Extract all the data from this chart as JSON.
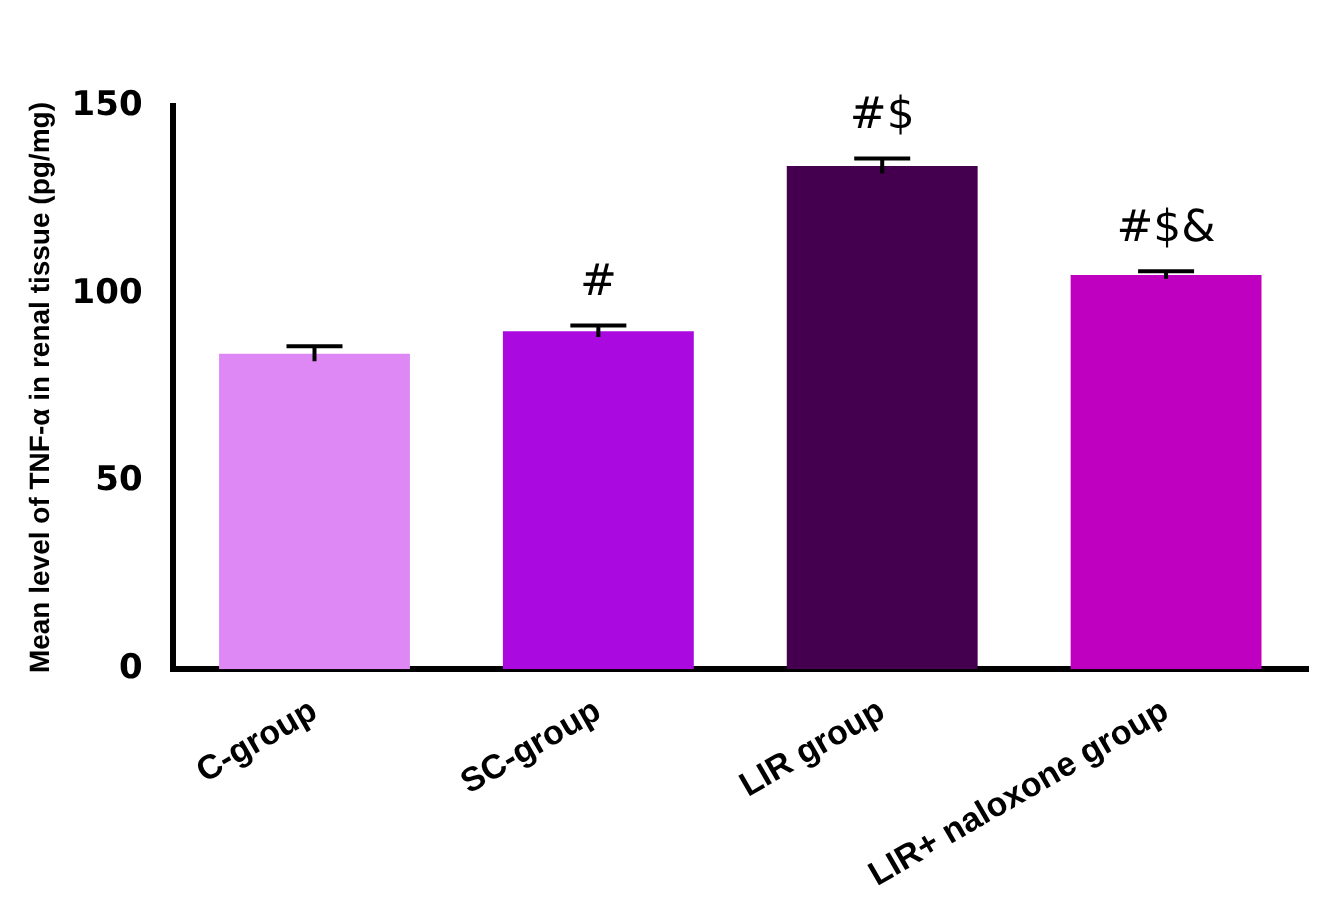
{
  "chart_data": {
    "type": "bar",
    "ylabel": "Mean level of TNF-α in renal tissue (pg/mg)",
    "categories": [
      "C-group",
      "SC-group",
      "LIR group",
      "LIR+ naloxone group"
    ],
    "values": [
      84,
      90,
      134,
      105
    ],
    "colors": [
      "#dd88f5",
      "#aa0ae0",
      "#44004f",
      "#c000c0"
    ],
    "errors": [
      2,
      1.5,
      2,
      1
    ],
    "ylim": [
      0,
      150
    ],
    "yticks": [
      0,
      50,
      100,
      150
    ],
    "grid": false,
    "legend": false,
    "annotations": [
      {
        "text": "#",
        "x": "SC-group",
        "y": 91.5
      },
      {
        "text": "#$",
        "x": "LIR group",
        "y": 136
      },
      {
        "text": "#$&",
        "x": "LIR+ naloxone group",
        "y": 106
      }
    ]
  }
}
